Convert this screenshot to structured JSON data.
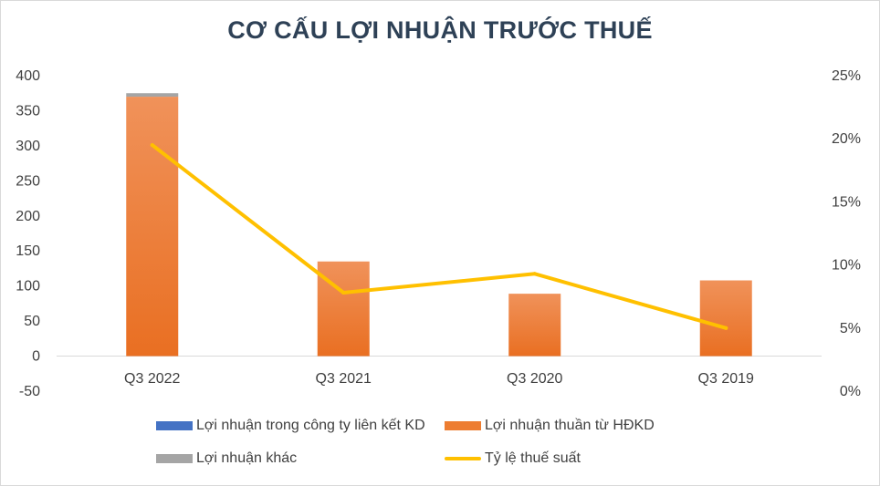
{
  "chart_data": {
    "type": "bar",
    "title": "CƠ CẤU LỢI NHUẬN TRƯỚC THUẾ",
    "categories": [
      "Q3 2022",
      "Q3 2021",
      "Q3 2020",
      "Q3 2019"
    ],
    "series": [
      {
        "name": "Lợi nhuận trong công ty liên kết KD",
        "type": "bar",
        "stack": "main",
        "axis": "left",
        "color": "#4472c4",
        "values": [
          0,
          0,
          0,
          0
        ]
      },
      {
        "name": "Lợi nhuận thuần từ HĐKD",
        "type": "bar",
        "stack": "main",
        "axis": "left",
        "color": "#ed7d31",
        "values": [
          370,
          135,
          89,
          108
        ]
      },
      {
        "name": "Lợi nhuận khác",
        "type": "bar",
        "stack": "main",
        "axis": "left",
        "color": "#a5a5a5",
        "values": [
          5,
          0,
          0,
          0
        ]
      },
      {
        "name": "Tỷ lệ thuế suất",
        "type": "line",
        "axis": "right",
        "color": "#ffc000",
        "values": [
          0.195,
          0.078,
          0.093,
          0.05
        ]
      }
    ],
    "y_left": {
      "min": -50,
      "max": 400,
      "ticks": [
        -50,
        0,
        50,
        100,
        150,
        200,
        250,
        300,
        350,
        400
      ],
      "tick_labels": [
        "-50",
        "0",
        "50",
        "100",
        "150",
        "200",
        "250",
        "300",
        "350",
        "400"
      ]
    },
    "y_right": {
      "min": 0,
      "max": 0.25,
      "ticks": [
        0,
        0.05,
        0.1,
        0.15,
        0.2,
        0.25
      ],
      "tick_labels": [
        "0%",
        "5%",
        "10%",
        "15%",
        "20%",
        "25%"
      ]
    },
    "grid": false,
    "legend_position": "bottom"
  }
}
